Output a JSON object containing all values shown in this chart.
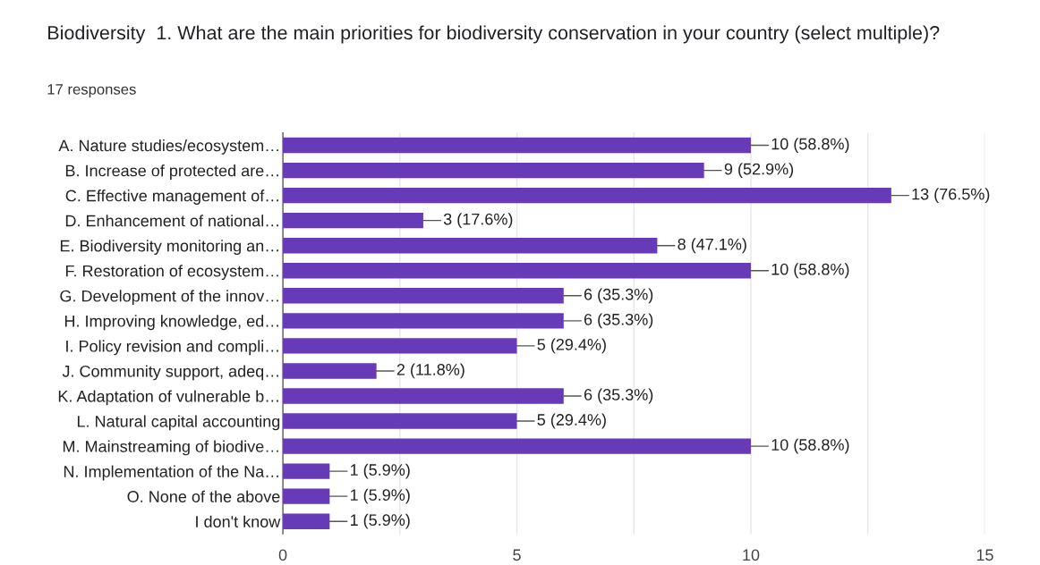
{
  "chart_data": {
    "type": "bar",
    "orientation": "horizontal",
    "title": "Biodiversity  1. What are the main priorities for biodiversity conservation in your country (select multiple)?",
    "subtitle": "17 responses",
    "categories": [
      "A. Nature studies/ecosystem…",
      "B. Increase of protected are…",
      "C. Effective management of…",
      "D. Enhancement of national…",
      "E. Biodiversity monitoring an…",
      "F. Restoration of ecosystem…",
      "G. Development of the innov…",
      "H. Improving knowledge, ed…",
      "I. Policy revision and compli…",
      "J. Community support, adeq…",
      "K. Adaptation of vulnerable b…",
      "L. Natural capital accounting",
      "M. Mainstreaming of biodive…",
      "N. Implementation of the Na…",
      "O. None of the above",
      "I don't know"
    ],
    "values": [
      10,
      9,
      13,
      3,
      8,
      10,
      6,
      6,
      5,
      2,
      6,
      5,
      10,
      1,
      1,
      1
    ],
    "value_labels": [
      "10 (58.8%)",
      "9 (52.9%)",
      "13 (76.5%)",
      "3 (17.6%)",
      "8 (47.1%)",
      "10 (58.8%)",
      "6 (35.3%)",
      "6 (35.3%)",
      "5 (29.4%)",
      "2 (11.8%)",
      "6 (35.3%)",
      "5 (29.4%)",
      "10 (58.8%)",
      "1 (5.9%)",
      "1 (5.9%)",
      "1 (5.9%)"
    ],
    "color": "#673ab7",
    "xlim": [
      0,
      15
    ],
    "xticks": [
      0,
      {
        "value": 2.5,
        "label": null
      },
      5,
      {
        "value": 7.5,
        "label": null
      },
      10,
      {
        "value": 12.5,
        "label": null
      },
      15
    ],
    "grid": "x"
  }
}
